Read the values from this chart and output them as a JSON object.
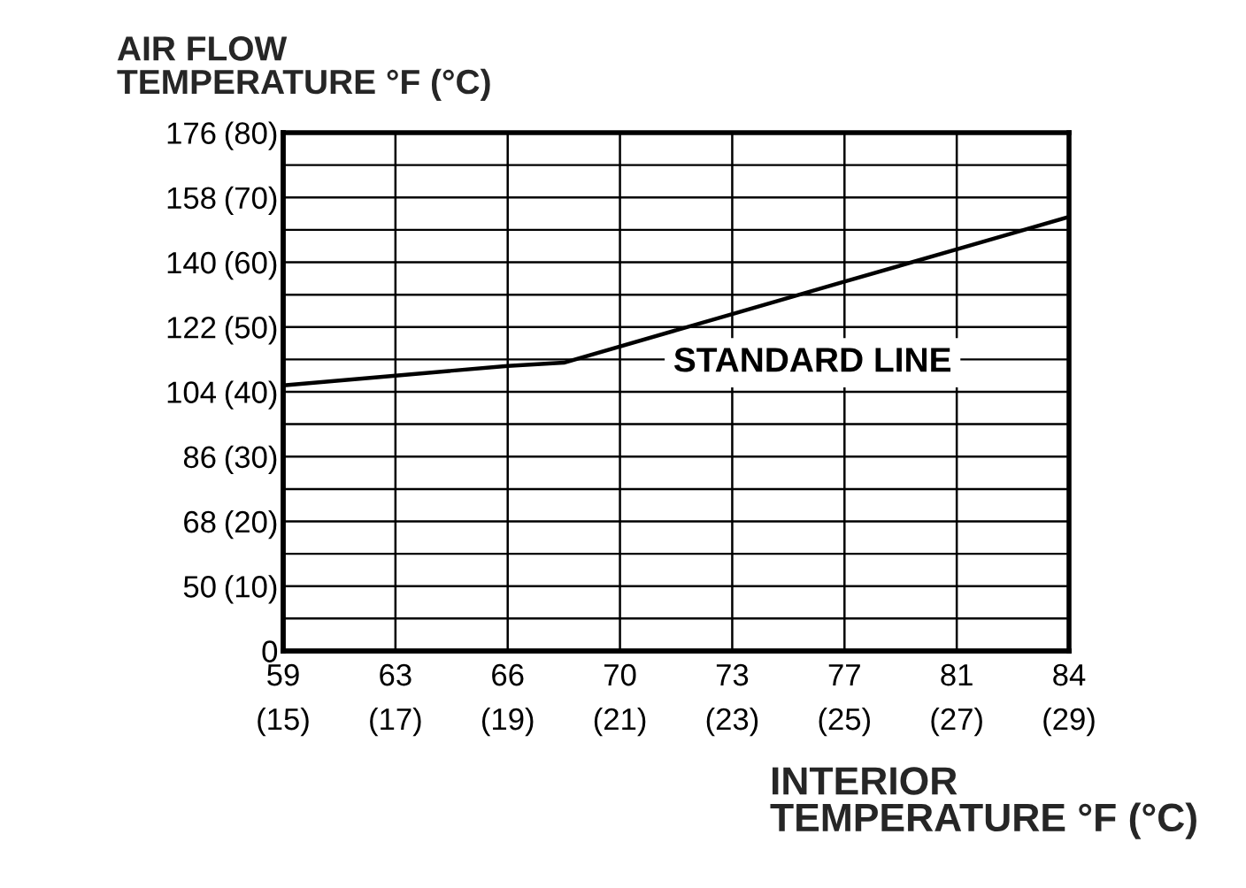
{
  "chart_data": {
    "type": "line",
    "xlabel": "INTERIOR\nTEMPERATURE °F (°C)",
    "ylabel": "AIR FLOW\nTEMPERATURE °F (°C)",
    "x": [
      15,
      17,
      19,
      20,
      23,
      25,
      27,
      29
    ],
    "series": [
      {
        "name": "STANDARD LINE",
        "color": "#000000",
        "values": [
          41,
          42.5,
          44,
          44.5,
          52,
          57,
          62,
          67
        ]
      }
    ],
    "xlim": [
      15,
      29
    ],
    "xticks": [
      {
        "value": 15,
        "label": "(15)"
      },
      {
        "value": 17,
        "label": "(17)"
      },
      {
        "value": 19,
        "label": "(19)"
      },
      {
        "value": 21,
        "label": "(21)"
      },
      {
        "value": 23,
        "label": "(23)"
      },
      {
        "value": 25,
        "label": "(25)"
      },
      {
        "value": 27,
        "label": "(27)"
      },
      {
        "value": 29,
        "label": "(29)"
      }
    ],
    "x2lim": [
      59,
      84.2
    ],
    "x2ticks": [
      59,
      {
        "value": 62.6,
        "label": "63"
      },
      {
        "value": 66.2,
        "label": "66"
      },
      {
        "value": 69.8,
        "label": "70"
      },
      {
        "value": 73.4,
        "label": "73"
      },
      77,
      {
        "value": 80.6,
        "label": "81"
      },
      {
        "value": 84.2,
        "label": "84"
      }
    ],
    "ylim": [
      0,
      80
    ],
    "yticks": [
      0,
      {
        "value": 5,
        "label": null
      },
      {
        "value": 10,
        "label": "(10)"
      },
      {
        "value": 15,
        "label": null
      },
      {
        "value": 20,
        "label": "(20)"
      },
      {
        "value": 25,
        "label": null
      },
      {
        "value": 30,
        "label": "(30)"
      },
      {
        "value": 35,
        "label": null
      },
      {
        "value": 40,
        "label": "(40)"
      },
      {
        "value": 45,
        "label": null
      },
      {
        "value": 50,
        "label": "(50)"
      },
      {
        "value": 55,
        "label": null
      },
      {
        "value": 60,
        "label": "(60)"
      },
      {
        "value": 65,
        "label": null
      },
      {
        "value": 70,
        "label": "(70)"
      },
      {
        "value": 75,
        "label": null
      },
      {
        "value": 80,
        "label": "(80)"
      }
    ],
    "y2lim": [
      32,
      176
    ],
    "y2ticks": [
      50,
      68,
      86,
      104,
      122,
      140,
      158,
      176
    ],
    "grid": true
  }
}
